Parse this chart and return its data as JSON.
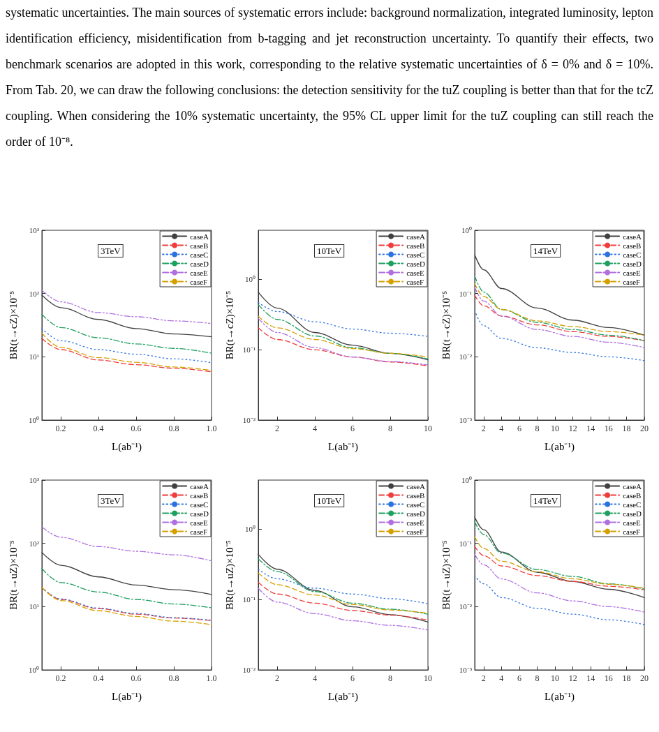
{
  "chart_data": [
    {
      "type": "other",
      "annotations": [
        "systematic uncertainties. The main sources of systematic errors include: background normalization, integrated luminosity, lepton identification efficiency, misidentification from b-tagging and jet reconstruction uncertainty. To quantify their effects, two benchmark scenarios are adopted in this work, corresponding to the relative systematic uncertainties of δ = 0% and δ = 10%. From Tab. 20, we can draw the following conclusions: the detection sensitivity for the tuZ coupling is better than that for the tcZ coupling. When considering the 10% systematic uncertainty, the 95% CL upper limit for the tuZ coupling can still reach the order of 10⁻⁸."
      ]
    },
    {
      "type": "line",
      "xlabel": "L(ab⁻¹)",
      "ylabel": "BR(t→cZ)×10⁻⁵",
      "annotations": [
        "3TeV"
      ],
      "log": "y",
      "legend": "top right",
      "marker": "none",
      "x": [
        0.1,
        0.2,
        0.4,
        0.6,
        0.8,
        1.0
      ],
      "xlim": [
        0.1,
        1.0
      ],
      "xticks": [
        0.2,
        0.4,
        0.6,
        0.8,
        {
          "value": 1.0,
          "label": "1.0"
        }
      ],
      "ylim": [
        1,
        1000
      ],
      "yticks": [
        {
          "value": 1,
          "label": "10⁰"
        },
        {
          "value": 10,
          "label": "10¹"
        },
        {
          "value": 100,
          "label": "10²"
        },
        {
          "value": 1000,
          "label": "10³"
        }
      ],
      "series": [
        {
          "name": "caseA",
          "color": "#404040",
          "line_style": "solid",
          "values": [
            95,
            60,
            39,
            28,
            23,
            20.7
          ]
        },
        {
          "name": "caseB",
          "color": "#f03c3c",
          "line_style": "dashed",
          "values": [
            19.5,
            13,
            8.9,
            7.5,
            6.6,
            5.8
          ]
        },
        {
          "name": "caseC",
          "color": "#2a72e0",
          "line_style": "dotted",
          "values": [
            28,
            18,
            13,
            11,
            9.3,
            8.1
          ]
        },
        {
          "name": "caseD",
          "color": "#20a060",
          "line_style": "dashdot",
          "values": [
            47,
            29,
            20,
            16,
            13.6,
            11.4
          ]
        },
        {
          "name": "caseE",
          "color": "#b070e0",
          "line_style": "dashdotdot",
          "values": [
            113,
            74,
            50,
            43,
            37,
            33.6
          ]
        },
        {
          "name": "caseF",
          "color": "#d4a000",
          "line_style": "dashed",
          "values": [
            23.6,
            14,
            9.7,
            8.2,
            6.9,
            6.1
          ]
        }
      ]
    },
    {
      "type": "line",
      "xlabel": "L(ab⁻¹)",
      "ylabel": "BR(t→cZ)×10⁻⁵",
      "annotations": [
        "10TeV"
      ],
      "log": "y",
      "legend": "top right",
      "marker": "none",
      "x": [
        1,
        2,
        4,
        6,
        8,
        10
      ],
      "xlim": [
        1,
        10
      ],
      "xticks": [
        2,
        4,
        6,
        8,
        10
      ],
      "ylim": [
        0.01,
        5
      ],
      "yticks": [
        {
          "value": 0.01,
          "label": "10⁻²"
        },
        {
          "value": 0.1,
          "label": "10⁻¹"
        },
        {
          "value": 1,
          "label": "10⁰"
        }
      ],
      "series": [
        {
          "name": "caseA",
          "color": "#404040",
          "line_style": "solid",
          "values": [
            0.66,
            0.39,
            0.176,
            0.116,
            0.089,
            0.072
          ]
        },
        {
          "name": "caseB",
          "color": "#f03c3c",
          "line_style": "dashed",
          "values": [
            0.205,
            0.14,
            0.1,
            0.079,
            0.067,
            0.059
          ]
        },
        {
          "name": "caseC",
          "color": "#2a72e0",
          "line_style": "dotted",
          "values": [
            0.47,
            0.35,
            0.25,
            0.197,
            0.172,
            0.155
          ]
        },
        {
          "name": "caseD",
          "color": "#20a060",
          "line_style": "dashdot",
          "values": [
            0.44,
            0.27,
            0.157,
            0.107,
            0.089,
            0.074
          ]
        },
        {
          "name": "caseE",
          "color": "#b070e0",
          "line_style": "dashdotdot",
          "values": [
            0.28,
            0.176,
            0.107,
            0.079,
            0.068,
            0.061
          ]
        },
        {
          "name": "caseF",
          "color": "#d4a000",
          "line_style": "dashed",
          "values": [
            0.3,
            0.205,
            0.14,
            0.104,
            0.089,
            0.079
          ]
        }
      ]
    },
    {
      "type": "line",
      "xlabel": "L(ab⁻¹)",
      "ylabel": "BR(t→cZ)×10⁻⁵",
      "annotations": [
        "14TeV"
      ],
      "log": "y",
      "legend": "top right",
      "marker": "none",
      "x": [
        1,
        2,
        4,
        8,
        12,
        16,
        20
      ],
      "xlim": [
        1,
        20
      ],
      "xticks": [
        2,
        4,
        6,
        8,
        10,
        12,
        14,
        16,
        18,
        20
      ],
      "ylim": [
        0.001,
        1
      ],
      "yticks": [
        {
          "value": 0.001,
          "label": "10⁻³"
        },
        {
          "value": 0.01,
          "label": "10⁻²"
        },
        {
          "value": 0.1,
          "label": "10⁻¹"
        },
        {
          "value": 1,
          "label": "10⁰"
        }
      ],
      "series": [
        {
          "name": "caseA",
          "color": "#404040",
          "line_style": "solid",
          "values": [
            0.41,
            0.237,
            0.12,
            0.059,
            0.038,
            0.029,
            0.022
          ]
        },
        {
          "name": "caseB",
          "color": "#f03c3c",
          "line_style": "dashed",
          "values": [
            0.094,
            0.064,
            0.044,
            0.032,
            0.025,
            0.021,
            0.018
          ]
        },
        {
          "name": "caseC",
          "color": "#2a72e0",
          "line_style": "dotted",
          "values": [
            0.054,
            0.031,
            0.0195,
            0.0139,
            0.0117,
            0.01,
            0.0087
          ]
        },
        {
          "name": "caseD",
          "color": "#20a060",
          "line_style": "dashdot",
          "values": [
            0.19,
            0.106,
            0.056,
            0.035,
            0.027,
            0.022,
            0.018
          ]
        },
        {
          "name": "caseE",
          "color": "#b070e0",
          "line_style": "dashdotdot",
          "values": [
            0.126,
            0.076,
            0.044,
            0.027,
            0.021,
            0.017,
            0.014
          ]
        },
        {
          "name": "caseF",
          "color": "#d4a000",
          "line_style": "dashed",
          "values": [
            0.143,
            0.09,
            0.056,
            0.037,
            0.03,
            0.025,
            0.022
          ]
        }
      ]
    },
    {
      "type": "line",
      "xlabel": "L(ab⁻¹)",
      "ylabel": "BR(t→uZ)×10⁻⁵",
      "annotations": [
        "3TeV"
      ],
      "log": "y",
      "legend": "top right",
      "marker": "none",
      "x": [
        0.1,
        0.2,
        0.4,
        0.6,
        0.8,
        1.0
      ],
      "xlim": [
        0.1,
        1.0
      ],
      "xticks": [
        0.2,
        0.4,
        0.6,
        0.8,
        {
          "value": 1.0,
          "label": "1.0"
        }
      ],
      "ylim": [
        1,
        1000
      ],
      "yticks": [
        {
          "value": 1,
          "label": "10⁰"
        },
        {
          "value": 10,
          "label": "10¹"
        },
        {
          "value": 100,
          "label": "10²"
        },
        {
          "value": 1000,
          "label": "10³"
        }
      ],
      "series": [
        {
          "name": "caseA",
          "color": "#404040",
          "line_style": "solid",
          "values": [
            72,
            45,
            29.5,
            22,
            18.5,
            15.6
          ]
        },
        {
          "name": "caseB",
          "color": "#f03c3c",
          "line_style": "dashed",
          "values": [
            20,
            13,
            9.3,
            7.6,
            6.6,
            6.0
          ]
        },
        {
          "name": "caseC",
          "color": "#2a72e0",
          "line_style": "dotted",
          "values": [
            20,
            13.2,
            9.5,
            7.8,
            6.7,
            6.1
          ]
        },
        {
          "name": "caseD",
          "color": "#20a060",
          "line_style": "dashdot",
          "values": [
            40,
            24,
            17,
            13,
            11,
            9.6
          ]
        },
        {
          "name": "caseE",
          "color": "#b070e0",
          "line_style": "dashdotdot",
          "values": [
            182,
            125,
            89,
            75,
            66,
            53
          ]
        },
        {
          "name": "caseF",
          "color": "#d4a000",
          "line_style": "dashed",
          "values": [
            20,
            12.5,
            8.6,
            7.0,
            5.9,
            5.2
          ]
        }
      ]
    },
    {
      "type": "line",
      "xlabel": "L(ab⁻¹)",
      "ylabel": "BR(t→uZ)×10⁻⁵",
      "annotations": [
        "10TeV"
      ],
      "log": "y",
      "legend": "top right",
      "marker": "none",
      "x": [
        1,
        2,
        4,
        6,
        8,
        10
      ],
      "xlim": [
        1,
        10
      ],
      "xticks": [
        2,
        4,
        6,
        8,
        10
      ],
      "ylim": [
        0.01,
        5
      ],
      "yticks": [
        {
          "value": 0.01,
          "label": "10⁻²"
        },
        {
          "value": 0.1,
          "label": "10⁻¹"
        },
        {
          "value": 1,
          "label": "10⁰"
        }
      ],
      "series": [
        {
          "name": "caseA",
          "color": "#404040",
          "line_style": "solid",
          "values": [
            0.44,
            0.27,
            0.135,
            0.079,
            0.061,
            0.048
          ]
        },
        {
          "name": "caseB",
          "color": "#f03c3c",
          "line_style": "dashed",
          "values": [
            0.176,
            0.12,
            0.089,
            0.07,
            0.06,
            0.051
          ]
        },
        {
          "name": "caseC",
          "color": "#2a72e0",
          "line_style": "dotted",
          "values": [
            0.27,
            0.197,
            0.145,
            0.12,
            0.103,
            0.087
          ]
        },
        {
          "name": "caseD",
          "color": "#20a060",
          "line_style": "dashdot",
          "values": [
            0.38,
            0.25,
            0.13,
            0.089,
            0.073,
            0.062
          ]
        },
        {
          "name": "caseE",
          "color": "#b070e0",
          "line_style": "dashdotdot",
          "values": [
            0.145,
            0.092,
            0.063,
            0.05,
            0.043,
            0.037
          ]
        },
        {
          "name": "caseF",
          "color": "#d4a000",
          "line_style": "dashed",
          "values": [
            0.24,
            0.163,
            0.116,
            0.085,
            0.071,
            0.064
          ]
        }
      ]
    },
    {
      "type": "line",
      "xlabel": "L(ab⁻¹)",
      "ylabel": "BR(t→uZ)×10⁻⁵",
      "annotations": [
        "14TeV"
      ],
      "log": "y",
      "legend": "top right",
      "marker": "none",
      "x": [
        1,
        2,
        4,
        8,
        12,
        16,
        20
      ],
      "xlim": [
        1,
        20
      ],
      "xticks": [
        2,
        4,
        6,
        8,
        10,
        12,
        14,
        16,
        18,
        20
      ],
      "ylim": [
        0.001,
        1
      ],
      "yticks": [
        {
          "value": 0.001,
          "label": "10⁻³"
        },
        {
          "value": 0.01,
          "label": "10⁻²"
        },
        {
          "value": 0.1,
          "label": "10⁻¹"
        },
        {
          "value": 1,
          "label": "10⁰"
        }
      ],
      "series": [
        {
          "name": "caseA",
          "color": "#404040",
          "line_style": "solid",
          "values": [
            0.26,
            0.164,
            0.073,
            0.035,
            0.025,
            0.0188,
            0.0139
          ]
        },
        {
          "name": "caseB",
          "color": "#f03c3c",
          "line_style": "dashed",
          "values": [
            0.09,
            0.064,
            0.044,
            0.031,
            0.025,
            0.021,
            0.0184
          ]
        },
        {
          "name": "caseC",
          "color": "#2a72e0",
          "line_style": "dotted",
          "values": [
            0.031,
            0.023,
            0.0139,
            0.0094,
            0.0076,
            0.0062,
            0.0052
          ]
        },
        {
          "name": "caseD",
          "color": "#20a060",
          "line_style": "dashdot",
          "values": [
            0.22,
            0.138,
            0.07,
            0.0386,
            0.03,
            0.023,
            0.019
          ]
        },
        {
          "name": "caseE",
          "color": "#b070e0",
          "line_style": "dashdotdot",
          "values": [
            0.067,
            0.046,
            0.0274,
            0.0165,
            0.0123,
            0.01,
            0.0082
          ]
        },
        {
          "name": "caseF",
          "color": "#d4a000",
          "line_style": "dashed",
          "values": [
            0.127,
            0.083,
            0.052,
            0.0355,
            0.0275,
            0.0226,
            0.0196
          ]
        }
      ]
    }
  ]
}
